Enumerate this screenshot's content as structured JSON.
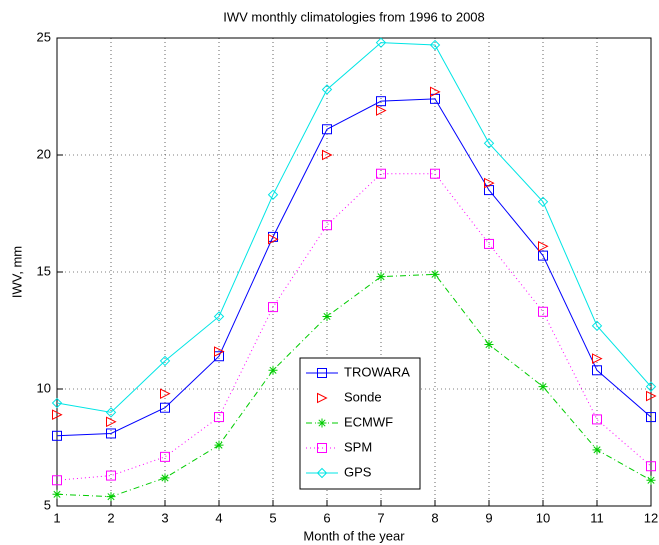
{
  "chart_data": {
    "type": "line",
    "title": "IWV monthly climatologies from 1996 to 2008",
    "x_label": "Month of the year",
    "y_label": "IWV, mm",
    "x": [
      1,
      2,
      3,
      4,
      5,
      6,
      7,
      8,
      9,
      10,
      11,
      12
    ],
    "xlim": [
      1,
      12
    ],
    "xticks": [
      1,
      2,
      3,
      4,
      5,
      6,
      7,
      8,
      9,
      10,
      11,
      12
    ],
    "ylim": [
      5,
      25
    ],
    "yticks": [
      5,
      10,
      15,
      20,
      25
    ],
    "grid": true,
    "legend": "bottom-center",
    "series": [
      {
        "name": "TROWARA",
        "color": "#0000ff",
        "marker": "square",
        "linestyle": "solid",
        "values": [
          8.0,
          8.1,
          9.2,
          11.4,
          16.5,
          21.1,
          22.3,
          22.4,
          18.5,
          15.7,
          10.8,
          8.8
        ]
      },
      {
        "name": "Sonde",
        "color": "#ff0000",
        "marker": "triangle-right",
        "linestyle": "none",
        "values": [
          8.9,
          8.6,
          9.8,
          11.6,
          16.4,
          20.0,
          21.9,
          22.7,
          18.8,
          16.1,
          11.3,
          9.7
        ]
      },
      {
        "name": "ECMWF",
        "color": "#00cc00",
        "marker": "asterisk",
        "linestyle": "dashdot",
        "values": [
          5.5,
          5.4,
          6.2,
          7.6,
          10.8,
          13.1,
          14.8,
          14.9,
          11.9,
          10.1,
          7.4,
          6.1
        ]
      },
      {
        "name": "SPM",
        "color": "#ff00ff",
        "marker": "square",
        "linestyle": "dotted",
        "values": [
          6.1,
          6.3,
          7.1,
          8.8,
          13.5,
          17.0,
          19.2,
          19.2,
          16.2,
          13.3,
          8.7,
          6.7
        ]
      },
      {
        "name": "GPS",
        "color": "#00e5e5",
        "marker": "diamond",
        "linestyle": "solid",
        "values": [
          9.4,
          9.0,
          11.2,
          13.1,
          18.3,
          22.8,
          24.8,
          24.7,
          20.5,
          18.0,
          12.7,
          10.1
        ]
      }
    ]
  }
}
